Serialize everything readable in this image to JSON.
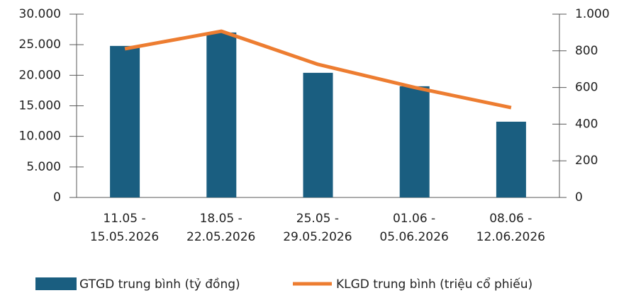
{
  "chart_data": {
    "type": "bar-line",
    "categories": [
      "11.05 -\n15.05.2026",
      "18.05 -\n22.05.2026",
      "25.05 -\n29.05.2026",
      "01.06 -\n05.06.2026",
      "08.06 -\n12.06.2026"
    ],
    "series": [
      {
        "name": "GTGD trung bình (tỷ đồng)",
        "type": "bar",
        "color": "#1a5e80",
        "values": [
          24800,
          27000,
          20400,
          18200,
          12400
        ]
      },
      {
        "name": "KLGD trung bình (triệu cổ phiếu)",
        "type": "line",
        "axis": "y2",
        "color": "#ed7d31",
        "values": [
          811,
          907,
          726,
          600,
          490
        ]
      }
    ],
    "ylim": [
      0,
      30000
    ],
    "yticks": [
      0,
      {
        "value": 5000,
        "label": "5.000"
      },
      {
        "value": 10000,
        "label": "10.000"
      },
      {
        "value": 15000,
        "label": "15.000"
      },
      {
        "value": 20000,
        "label": "20.000"
      },
      {
        "value": 25000,
        "label": "25.000"
      },
      {
        "value": 30000,
        "label": "30.000"
      }
    ],
    "y2lim": [
      0,
      1000
    ],
    "y2ticks": [
      0,
      200,
      400,
      600,
      800,
      {
        "value": 1000,
        "label": "1.000"
      }
    ],
    "legend": "bottom"
  }
}
